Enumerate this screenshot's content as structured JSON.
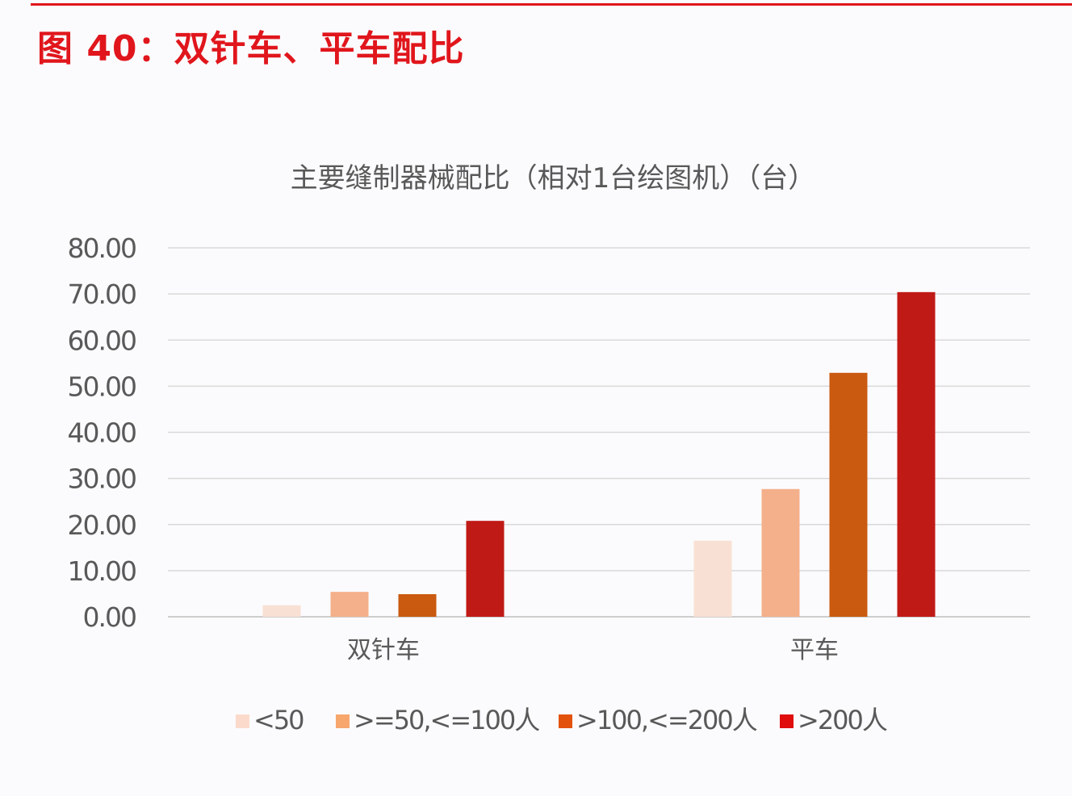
{
  "figure_title": "图 40：双针车、平车配比",
  "chart_data": {
    "type": "bar",
    "title": "主要缝制器械配比（相对1台绘图机）（台）",
    "xlabel": "",
    "ylabel": "",
    "ylim": [
      0,
      80
    ],
    "yticks": [
      0,
      10,
      20,
      30,
      40,
      50,
      60,
      70,
      80
    ],
    "ytick_labels": [
      "0.00",
      "10.00",
      "20.00",
      "30.00",
      "40.00",
      "50.00",
      "60.00",
      "70.00",
      "80.00"
    ],
    "grid": true,
    "legend_position": "bottom",
    "categories": [
      "双针车",
      "平车"
    ],
    "series": [
      {
        "name": "<50",
        "values": [
          2.5,
          16.5
        ],
        "color": "#f9e0d4",
        "legend_color": "#fbdacb"
      },
      {
        "name": ">=50,<=100人",
        "values": [
          5.4,
          27.7
        ],
        "color": "#f4b08a",
        "legend_color": "#f7a66c"
      },
      {
        "name": ">100,<=200人",
        "values": [
          4.9,
          52.9
        ],
        "color": "#c95a10",
        "legend_color": "#e2520c"
      },
      {
        "name": ">200人",
        "values": [
          20.8,
          70.4
        ],
        "color": "#c01a16",
        "legend_color": "#e00d0d"
      }
    ]
  }
}
